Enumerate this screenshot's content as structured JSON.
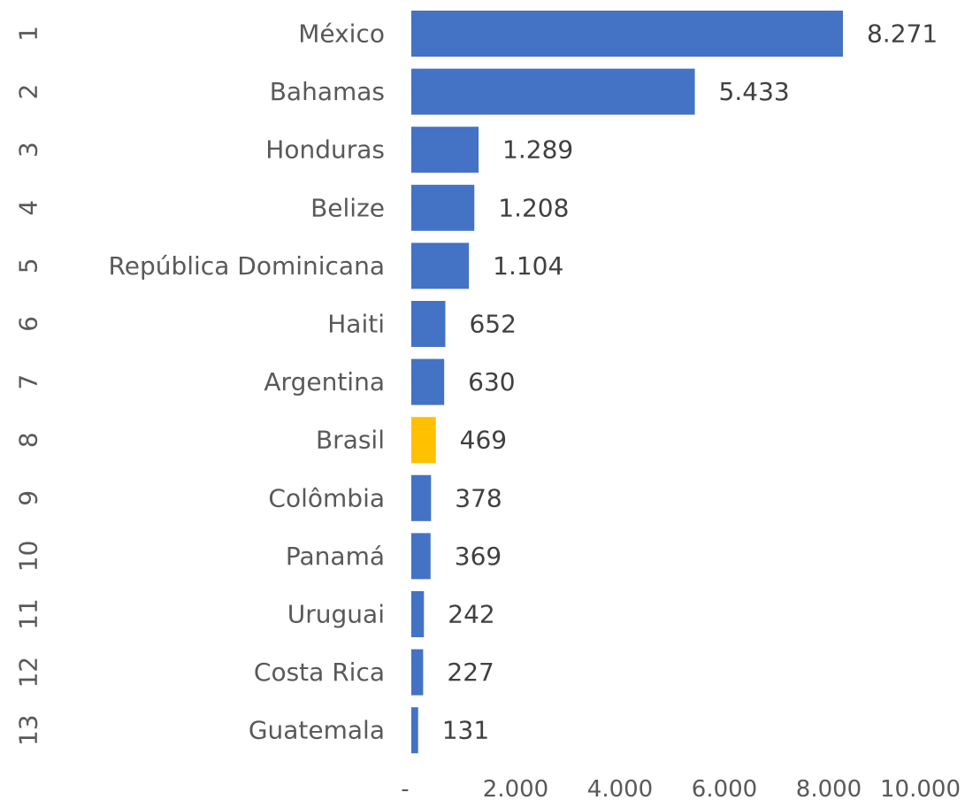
{
  "chart_data": {
    "type": "bar",
    "orientation": "horizontal",
    "ranks": [
      "1",
      "2",
      "3",
      "4",
      "5",
      "6",
      "7",
      "8",
      "9",
      "10",
      "11",
      "12",
      "13"
    ],
    "categories": [
      "México",
      "Bahamas",
      "Honduras",
      "Belize",
      "República Dominicana",
      "Haiti",
      "Argentina",
      "Brasil",
      "Colômbia",
      "Panamá",
      "Uruguai",
      "Costa Rica",
      "Guatemala"
    ],
    "values": [
      8271,
      5433,
      1289,
      1208,
      1104,
      652,
      630,
      469,
      378,
      369,
      242,
      227,
      131
    ],
    "value_labels": [
      "8.271",
      "5.433",
      "1.289",
      "1.208",
      "1.104",
      "652",
      "630",
      "469",
      "378",
      "369",
      "242",
      "227",
      "131"
    ],
    "x_ticks": [
      0,
      2000,
      4000,
      6000,
      8000,
      10000
    ],
    "x_tick_labels": [
      "-",
      "2.000",
      "4.000",
      "6.000",
      "8.000",
      "10.000"
    ],
    "xlim": [
      0,
      10000
    ],
    "highlight_category": "Brasil",
    "colors": {
      "bar": "#4472C4",
      "highlight": "#FFC000"
    },
    "grid": false,
    "legend": "none"
  }
}
